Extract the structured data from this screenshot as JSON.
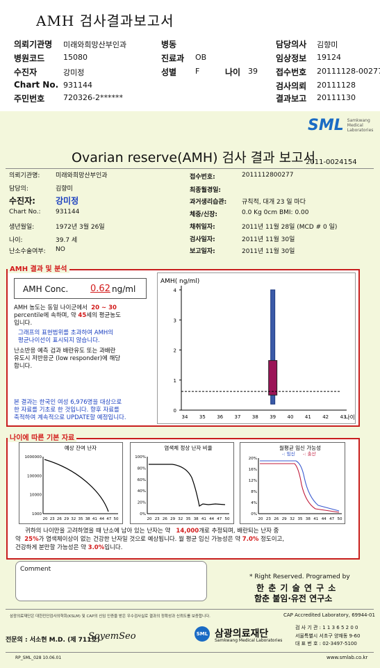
{
  "top": {
    "title": "AMH 검사결과보고서",
    "rows": [
      [
        {
          "l": "의뢰기관명",
          "v": "미래와희망산부인과"
        },
        {
          "l": "병동",
          "v": ""
        },
        {
          "l": "담당의사",
          "v": "김향미"
        }
      ],
      [
        {
          "l": "병원코드",
          "v": "15080"
        },
        {
          "l": "진료과",
          "v": "OB"
        },
        {
          "l": "임상정보",
          "v": "19124"
        }
      ],
      [
        {
          "l": "수진자",
          "v": "강미정"
        },
        {
          "l": "성별",
          "v": "F"
        },
        {
          "l": "접수번호",
          "v": "20111128-00277"
        }
      ],
      [
        {
          "l": "Chart No.",
          "v": "931144"
        },
        {
          "l": "",
          "v": ""
        },
        {
          "l": "검사의뢰",
          "v": "20111128"
        }
      ],
      [
        {
          "l": "주민번호",
          "v": "720326-2******"
        },
        {
          "l": "",
          "v": ""
        },
        {
          "l": "결과보고",
          "v": "20111130"
        }
      ]
    ],
    "age_label": "나이",
    "age_value": "39"
  },
  "sml": {
    "logo": "SML",
    "sub1": "Samkwang",
    "sub2": "Medical",
    "sub3": "Laboratories"
  },
  "report": {
    "title": "Ovarian reserve(AMH) 검사 결과 보고서",
    "doc_no": "2011-0024154",
    "left": [
      {
        "l": "의뢰기관명:",
        "v": "미래와희망산부인과"
      },
      {
        "l": "담당의:",
        "v": "김향미"
      },
      {
        "l": "수진자:",
        "v": "강미정"
      },
      {
        "l": "Chart No.:",
        "v": "931144"
      },
      {
        "l": "생년월일:",
        "v": "1972년 3월 26일"
      },
      {
        "l": "나이:",
        "v": "39.7 세"
      },
      {
        "l": "난소수술여부:",
        "v": "NO"
      }
    ],
    "right": [
      {
        "l": "접수번호:",
        "v": "2011112800277"
      },
      {
        "l": "최종월경일:",
        "v": ""
      },
      {
        "l": "과거생리습관:",
        "v": "규칙적, 대개  23 일 마다"
      },
      {
        "l": "체중/신장:",
        "v": "0.0  Kg      0cm   BMI:    0.00"
      },
      {
        "l": "채취일자:",
        "v": "2011년 11월 28일  (MCD #  0 일)"
      },
      {
        "l": "검사일자:",
        "v": "2011년 11월 30일"
      },
      {
        "l": "보고일자:",
        "v": "2011년 11월 30일"
      }
    ]
  },
  "amh": {
    "section": "AMH 결과 및 분석",
    "conc_label": "AMH Conc.",
    "conc_value": "0.62",
    "conc_unit": "ng/ml",
    "p1a": "AMH 농도는 동일 나이군에서",
    "p1b": "20 ~  30",
    "p1c": "percentile에 속하며, 약",
    "p1d": "45",
    "p1e": "세의 평균농도",
    "p1f": "입니다.",
    "p2a": "그래프의 표현범위를 초과하여 AMH의",
    "p2b": "평균나이선이 표시되지 않습니다.",
    "p3a": "난소반응 예측 검과 배란유도 또는 과배란",
    "p3b": "유도시 저반응군 (low responder)에 해당",
    "p3c": "합니다.",
    "p4a": "본 결과는 한국인 여성 6,976명을 대상으로",
    "p4b": "한 자료를 기초로 한 것입니다. 향후 자료를",
    "p4c": "축적하여 계속적으로 UPDATE할 예정입니다."
  },
  "chart_data": [
    {
      "type": "box",
      "title": "AMH( ng/ml)",
      "xlabel": "나이",
      "x_ticks": [
        "34",
        "35",
        "36",
        "37",
        "38",
        "39",
        "40",
        "41",
        "42",
        "43"
      ],
      "y_ticks": [
        "0",
        "1",
        "2",
        "3",
        "4"
      ],
      "ylim": [
        0,
        4
      ],
      "box": {
        "x": 39,
        "whisker_low": 0.2,
        "q1": 0.5,
        "q3": 1.65,
        "whisker_high": 4.0
      },
      "patient_value": 0.62
    },
    {
      "type": "line",
      "title": "예상 잔여 난자",
      "y_ticks": [
        "1000000",
        "100000",
        "10000",
        "1000"
      ],
      "x_ticks": [
        "20",
        "23",
        "26",
        "29",
        "32",
        "35",
        "38",
        "41",
        "44",
        "47",
        "50"
      ]
    },
    {
      "type": "line",
      "title": "염색체 정상 난자 비율",
      "y_ticks": [
        "100%",
        "80%",
        "60%",
        "40%",
        "20%",
        "0%"
      ],
      "x_ticks": [
        "20",
        "23",
        "26",
        "29",
        "32",
        "35",
        "38",
        "41",
        "44",
        "47",
        "50"
      ]
    },
    {
      "type": "line",
      "title": "월평균 임신 가능성",
      "legend": [
        "임신",
        "출산"
      ],
      "y_ticks": [
        "20%",
        "16%",
        "12%",
        "8%",
        "4%",
        "0%"
      ],
      "x_ticks": [
        "20",
        "23",
        "26",
        "29",
        "32",
        "35",
        "38",
        "41",
        "44",
        "47",
        "50"
      ]
    }
  ],
  "age_section": {
    "title": "나이에 따른 기본 자료",
    "sum1a": "귀하의 나이만을 고려하였을 때 난소에 남아 있는 난자는 약",
    "sum1b": "14,000",
    "sum1c": "개로 추정되며, 배란되는 난자 중",
    "sum2a": "약",
    "sum2b": "25%",
    "sum2c": "가 염색체이상이 없는 건강한 난자일 것으로 예상됩니다. 월 평균 임신 가능성은 약",
    "sum2d": "7.0%",
    "sum2e": "정도이고,",
    "sum3a": "건강하게 분만할 가능성은 약",
    "sum3b": "3.0%",
    "sum3c": "입니다."
  },
  "comment": {
    "label": "Comment"
  },
  "rights": {
    "r1": "* Right Reserved. Programed by",
    "r2": "한 춘 기 술 연 구 소",
    "r3": "함춘 불임·유전 연구소"
  },
  "footer": {
    "note": "삼광의료재단은 대한진단검사의학회(KSLM) 및 CAP의 신임 인증을 받은 우수검사실로 결과의 정확성과 신뢰도를 보증합니다.",
    "cap": "CAP  Accredited  Laboratory,  69944-01",
    "doctor": "전문의 : 서소현 M.D. (제 711호)",
    "sign": "SoyemSeo",
    "org": "삼광의료재단",
    "org_en": "Samkwang Medical Laboratories",
    "addr1": "검 사 기 관 : 1 1 3 6 5 2 0 0",
    "addr2": "서울특별시 서초구 양재동 9-60",
    "addr3": "대 표 번 호 : 02-3497-5100",
    "form": "RP_SML_028  10.06.01",
    "url": "www.smlab.co.kr"
  }
}
